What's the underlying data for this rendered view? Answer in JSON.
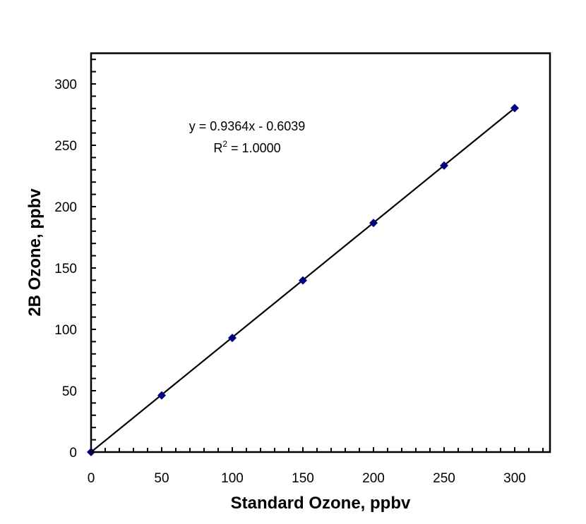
{
  "chart_data": {
    "type": "scatter",
    "title": "",
    "xlabel": "Standard Ozone, ppbv",
    "ylabel": "2B Ozone, ppbv",
    "xlim": [
      0,
      325
    ],
    "ylim": [
      0,
      325
    ],
    "xticks": [
      0,
      50,
      100,
      150,
      200,
      250,
      300
    ],
    "yticks": [
      0,
      50,
      100,
      150,
      200,
      250,
      300
    ],
    "minor_tick_step": 10,
    "grid": false,
    "x": [
      0,
      50,
      100,
      150,
      200,
      250,
      300
    ],
    "y": [
      0,
      46.2,
      93.0,
      139.9,
      186.7,
      233.5,
      280.3
    ],
    "marker": "diamond",
    "marker_color": "#000080",
    "trendline": {
      "slope": 0.9364,
      "intercept": -0.6039,
      "color": "#000000"
    },
    "annotations": {
      "equation": "y = 0.9364x - 0.6039",
      "r2_prefix": "R",
      "r2_sup": "2",
      "r2_value": " = 1.0000"
    }
  }
}
